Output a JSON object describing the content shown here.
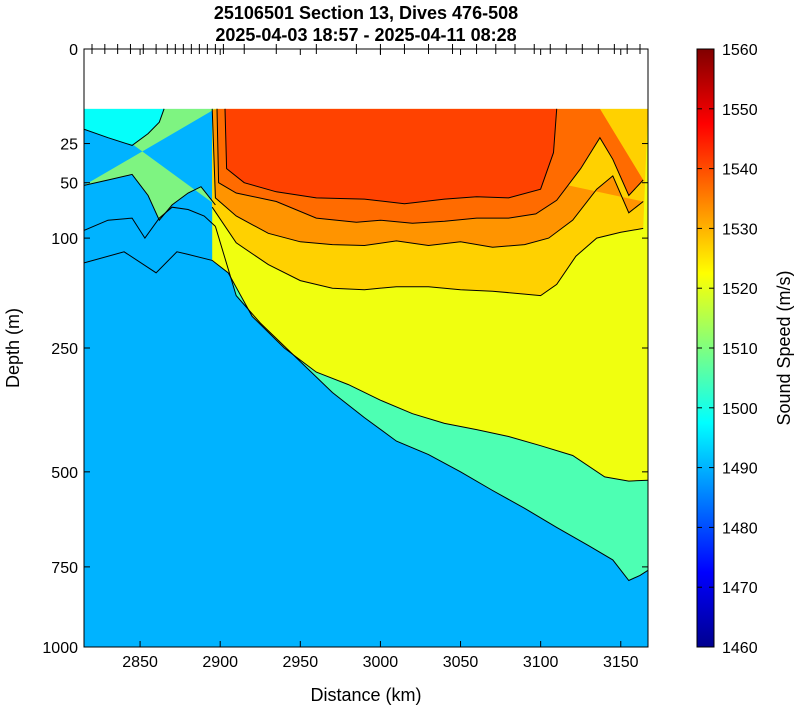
{
  "chart_data": {
    "type": "heatmap",
    "title": "25106501 Section 13, Dives 476-508",
    "subtitle": "2025-04-03 18:57 - 2025-04-11 08:28",
    "xlabel": "Distance (km)",
    "ylabel": "Depth (m)",
    "xlim": [
      2815,
      3167
    ],
    "x_ticks": [
      2850,
      2900,
      2950,
      3000,
      3050,
      3100,
      3150
    ],
    "y_scale": "sqrt",
    "ylim": [
      0,
      1000
    ],
    "y_ticks": [
      0,
      25,
      50,
      100,
      250,
      500,
      750,
      1000
    ],
    "data_top_depth": 10,
    "colorbar": {
      "label": "Sound Speed (m/s)",
      "range": [
        1460,
        1560
      ],
      "ticks": [
        1460,
        1470,
        1480,
        1490,
        1500,
        1510,
        1520,
        1530,
        1540,
        1550,
        1560
      ],
      "colormap": "jet"
    },
    "dive_markers_x": [
      2820,
      2828,
      2836,
      2844,
      2852,
      2860,
      2867,
      2872,
      2877,
      2882,
      2887,
      2892,
      2897,
      2902,
      2915,
      2935,
      2960,
      2985,
      3000,
      3015,
      3030,
      3045,
      3060,
      3072,
      3084,
      3096,
      3106,
      3116,
      3126,
      3136,
      3146,
      3154,
      3162
    ],
    "contours": [
      {
        "level": 1540,
        "points": [
          [
            2903,
            10
          ],
          [
            2904,
            40
          ],
          [
            2915,
            50
          ],
          [
            2935,
            57
          ],
          [
            2960,
            62
          ],
          [
            2990,
            63
          ],
          [
            3015,
            67
          ],
          [
            3040,
            63
          ],
          [
            3060,
            61
          ],
          [
            3080,
            62
          ],
          [
            3100,
            55
          ],
          [
            3108,
            30
          ],
          [
            3110,
            10
          ]
        ]
      },
      {
        "level": 1535,
        "points": [
          [
            2898,
            10
          ],
          [
            2899,
            50
          ],
          [
            2910,
            58
          ],
          [
            2935,
            65
          ],
          [
            2960,
            80
          ],
          [
            2985,
            84
          ],
          [
            3000,
            82
          ],
          [
            3020,
            85
          ],
          [
            3040,
            83
          ],
          [
            3060,
            80
          ],
          [
            3080,
            80
          ],
          [
            3097,
            76
          ],
          [
            3110,
            64
          ],
          [
            3125,
            40
          ],
          [
            3137,
            22
          ],
          [
            3145,
            34
          ],
          [
            3155,
            60
          ],
          [
            3164,
            48
          ]
        ]
      },
      {
        "level": 1530,
        "points": [
          [
            2895,
            10
          ],
          [
            2897,
            62
          ],
          [
            2910,
            78
          ],
          [
            2930,
            95
          ],
          [
            2950,
            104
          ],
          [
            2970,
            107
          ],
          [
            2990,
            108
          ],
          [
            3010,
            103
          ],
          [
            3030,
            108
          ],
          [
            3050,
            104
          ],
          [
            3070,
            110
          ],
          [
            3090,
            107
          ],
          [
            3105,
            100
          ],
          [
            3120,
            82
          ],
          [
            3135,
            55
          ],
          [
            3145,
            45
          ],
          [
            3155,
            75
          ],
          [
            3164,
            65
          ]
        ]
      },
      {
        "level": 1525,
        "points": [
          [
            2895,
            70
          ],
          [
            2910,
            105
          ],
          [
            2930,
            130
          ],
          [
            2950,
            150
          ],
          [
            2970,
            160
          ],
          [
            2990,
            162
          ],
          [
            3010,
            158
          ],
          [
            3030,
            158
          ],
          [
            3050,
            162
          ],
          [
            3070,
            164
          ],
          [
            3090,
            168
          ],
          [
            3100,
            170
          ],
          [
            3110,
            155
          ],
          [
            3122,
            120
          ],
          [
            3135,
            100
          ],
          [
            3150,
            94
          ],
          [
            3164,
            90
          ]
        ]
      },
      {
        "level": 1520,
        "points": [
          [
            2815,
            128
          ],
          [
            2840,
            115
          ],
          [
            2860,
            140
          ],
          [
            2873,
            115
          ],
          [
            2880,
            118
          ],
          [
            2895,
            125
          ],
          [
            2905,
            140
          ],
          [
            2920,
            200
          ],
          [
            2940,
            250
          ],
          [
            2960,
            292
          ],
          [
            2980,
            315
          ],
          [
            3000,
            345
          ],
          [
            3020,
            372
          ],
          [
            3040,
            392
          ],
          [
            3060,
            405
          ],
          [
            3080,
            420
          ],
          [
            3100,
            440
          ],
          [
            3120,
            462
          ],
          [
            3140,
            512
          ],
          [
            3155,
            522
          ],
          [
            3167,
            520
          ]
        ]
      },
      {
        "level": 1515,
        "points": [
          [
            2815,
            18
          ],
          [
            2830,
            22
          ],
          [
            2845,
            26
          ],
          [
            2855,
            20
          ],
          [
            2862,
            15
          ],
          [
            2865,
            10
          ]
        ]
      },
      {
        "level": 1510,
        "points": [
          [
            2815,
            52
          ],
          [
            2830,
            48
          ],
          [
            2845,
            44
          ],
          [
            2855,
            60
          ],
          [
            2862,
            82
          ],
          [
            2870,
            68
          ],
          [
            2880,
            58
          ],
          [
            2888,
            53
          ],
          [
            2897,
            68
          ]
        ]
      },
      {
        "level": 1505,
        "points": [
          [
            2815,
            92
          ],
          [
            2830,
            82
          ],
          [
            2845,
            80
          ],
          [
            2853,
            100
          ],
          [
            2862,
            80
          ],
          [
            2870,
            70
          ],
          [
            2880,
            72
          ],
          [
            2890,
            78
          ],
          [
            2897,
            88
          ]
        ]
      },
      {
        "level": 1500,
        "points": [
          [
            2897,
            88
          ],
          [
            2910,
            170
          ],
          [
            2925,
            210
          ],
          [
            2945,
            260
          ],
          [
            2970,
            330
          ],
          [
            2990,
            380
          ],
          [
            3010,
            430
          ],
          [
            3030,
            460
          ],
          [
            3050,
            500
          ],
          [
            3070,
            545
          ],
          [
            3090,
            590
          ],
          [
            3110,
            640
          ],
          [
            3130,
            690
          ],
          [
            3145,
            730
          ],
          [
            3155,
            790
          ],
          [
            3162,
            775
          ],
          [
            3167,
            760
          ]
        ]
      }
    ]
  }
}
